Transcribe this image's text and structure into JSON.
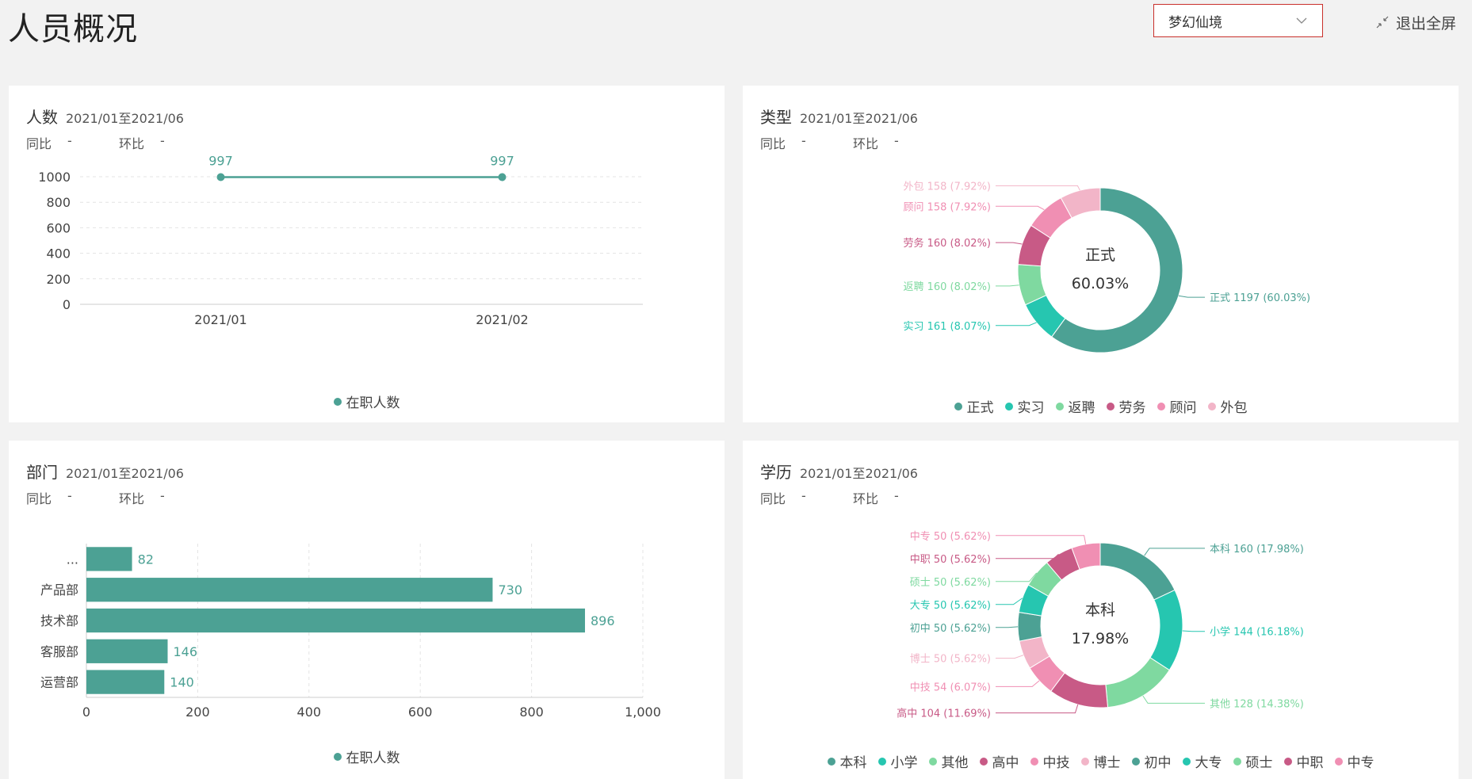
{
  "page": {
    "title": "人员概况",
    "theme_value": "梦幻仙境",
    "exit_fullscreen": "退出全屏"
  },
  "panels": {
    "headcount": {
      "title": "人数",
      "range": "2021/01至2021/06",
      "yoy_label": "同比",
      "yoy_value": "-",
      "mom_label": "环比",
      "mom_value": "-"
    },
    "type": {
      "title": "类型",
      "range": "2021/01至2021/06",
      "yoy_label": "同比",
      "yoy_value": "-",
      "mom_label": "环比",
      "mom_value": "-",
      "center_label": "正式",
      "center_value": "60.03%"
    },
    "dept": {
      "title": "部门",
      "range": "2021/01至2021/06",
      "yoy_label": "同比",
      "yoy_value": "-",
      "mom_label": "环比",
      "mom_value": "-"
    },
    "edu": {
      "title": "学历",
      "range": "2021/01至2021/06",
      "yoy_label": "同比",
      "yoy_value": "-",
      "mom_label": "环比",
      "mom_value": "-",
      "center_label": "本科",
      "center_value": "17.98%"
    }
  },
  "colors": {
    "teal": "#4ca194",
    "accent_red": "#c9302c"
  },
  "chart_data": [
    {
      "id": "headcount",
      "type": "line",
      "x": [
        "2021/01",
        "2021/02"
      ],
      "series": [
        {
          "name": "在职人数",
          "values": [
            997,
            997
          ],
          "color": "#4ca194"
        }
      ],
      "ylim": [
        0,
        1000
      ],
      "yticks": [
        "0",
        "200",
        "400",
        "600",
        "800",
        "1000"
      ],
      "grid": true,
      "legend": "bottom"
    },
    {
      "id": "type",
      "type": "pie",
      "donut": true,
      "slices": [
        {
          "name": "正式",
          "value": 1197,
          "pct": "60.03%",
          "color": "#4ca194"
        },
        {
          "name": "实习",
          "value": 161,
          "pct": "8.07%",
          "color": "#26c6b0"
        },
        {
          "name": "返聘",
          "value": 160,
          "pct": "8.02%",
          "color": "#7fd9a0"
        },
        {
          "name": "劳务",
          "value": 160,
          "pct": "8.02%",
          "color": "#c85a86"
        },
        {
          "name": "顾问",
          "value": 158,
          "pct": "7.92%",
          "color": "#f08fb3"
        },
        {
          "name": "外包",
          "value": 158,
          "pct": "7.92%",
          "color": "#f2b5c8"
        }
      ],
      "legend": "bottom"
    },
    {
      "id": "dept",
      "type": "bar",
      "orientation": "horizontal",
      "categories": [
        "...",
        "产品部",
        "技术部",
        "客服部",
        "运营部"
      ],
      "series": [
        {
          "name": "在职人数",
          "values": [
            82,
            730,
            896,
            146,
            140
          ],
          "color": "#4ca194"
        }
      ],
      "xlim": [
        0,
        1000
      ],
      "xticks": [
        "0",
        "200",
        "400",
        "600",
        "800",
        "1,000"
      ],
      "grid": true,
      "legend": "bottom"
    },
    {
      "id": "edu",
      "type": "pie",
      "donut": true,
      "slices": [
        {
          "name": "本科",
          "value": 160,
          "pct": "17.98%",
          "color": "#4ca194"
        },
        {
          "name": "小学",
          "value": 144,
          "pct": "16.18%",
          "color": "#26c6b0"
        },
        {
          "name": "其他",
          "value": 128,
          "pct": "14.38%",
          "color": "#7fd9a0"
        },
        {
          "name": "高中",
          "value": 104,
          "pct": "11.69%",
          "color": "#c85a86"
        },
        {
          "name": "中技",
          "value": 54,
          "pct": "6.07%",
          "color": "#f08fb3"
        },
        {
          "name": "博士",
          "value": 50,
          "pct": "5.62%",
          "color": "#f2b5c8"
        },
        {
          "name": "初中",
          "value": 50,
          "pct": "5.62%",
          "color": "#4ca194"
        },
        {
          "name": "大专",
          "value": 50,
          "pct": "5.62%",
          "color": "#26c6b0"
        },
        {
          "name": "硕士",
          "value": 50,
          "pct": "5.62%",
          "color": "#7fd9a0"
        },
        {
          "name": "中职",
          "value": 50,
          "pct": "5.62%",
          "color": "#c85a86"
        },
        {
          "name": "中专",
          "value": 50,
          "pct": "5.62%",
          "color": "#f08fb3"
        }
      ],
      "legend": "bottom"
    }
  ]
}
